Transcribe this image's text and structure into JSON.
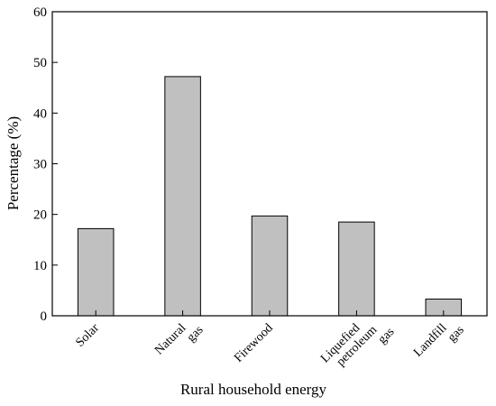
{
  "chart_data": {
    "type": "bar",
    "xlabel": "Rural household energy",
    "ylabel": "Percentage (%)",
    "ylim": [
      0,
      60
    ],
    "yticks": [
      "0",
      "10",
      "20",
      "30",
      "40",
      "50",
      "60"
    ],
    "categories": [
      [
        "Solar"
      ],
      [
        "Natural",
        "gas"
      ],
      [
        "Firewood"
      ],
      [
        "Liquefied",
        "petroleum",
        "gas"
      ],
      [
        "Landfill",
        "gas"
      ]
    ],
    "values": [
      17.2,
      47.2,
      19.7,
      18.5,
      3.3
    ],
    "bar_color": "#c0c0c0",
    "grid": false,
    "legend": "none"
  }
}
